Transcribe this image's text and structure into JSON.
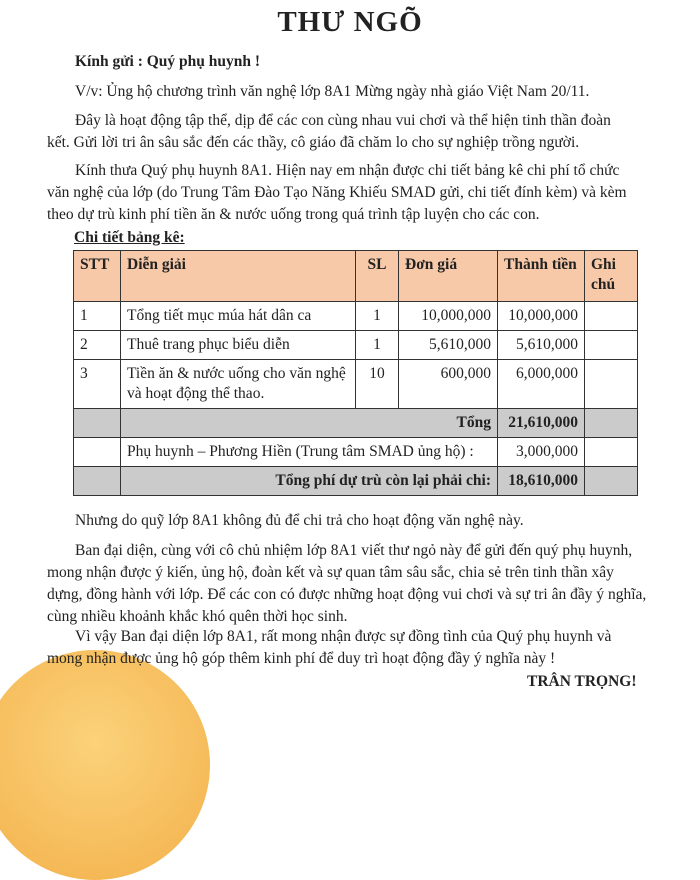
{
  "title": "THƯ NGÕ",
  "greeting": "Kính gửi : Quý phụ huynh !",
  "subject": "V/v: Ủng hộ chương trình văn nghệ lớp 8A1 Mừng ngày nhà giáo Việt Nam 20/11.",
  "para1": [
    "Đây là hoạt động tập thể, dịp để các con cùng nhau vui chơi và thể hiện tinh thần đoàn",
    "kết. Gửi lời tri ân sâu sắc đến các thầy, cô giáo đã chăm lo cho sự nghiệp trồng người."
  ],
  "para2": [
    "Kính thưa Quý phụ huynh 8A1. Hiện nay em nhận được chi tiết bảng kê chi phí tổ chức",
    "văn nghệ của lớp (do Trung Tâm Đào Tạo Năng Khiếu SMAD gửi, chi tiết đính kèm) và kèm",
    "theo dự trù kinh phí tiền ăn & nước uống trong quá trình tập luyện cho các con."
  ],
  "table_title": "Chi tiết bảng kê:",
  "table": {
    "headers": [
      "STT",
      "Diễn giải",
      "SL",
      "Đơn giá",
      "Thành tiền",
      "Ghi chú"
    ],
    "rows": [
      {
        "stt": "1",
        "desc": "Tổng tiết mục múa hát dân ca",
        "qty": "1",
        "price": "10,000,000",
        "total": "10,000,000",
        "note": ""
      },
      {
        "stt": "2",
        "desc": "Thuê trang phục biểu diễn",
        "qty": "1",
        "price": "5,610,000",
        "total": "5,610,000",
        "note": ""
      },
      {
        "stt": "3",
        "desc": "Tiền ăn & nước uống cho văn nghệ và hoạt động thể thao.",
        "qty": "10",
        "price": "600,000",
        "total": "6,000,000",
        "note": ""
      }
    ],
    "sum_label": "Tổng",
    "sum_value": "21,610,000",
    "support_label": "Phụ huynh – Phương Hiền (Trung tâm SMAD ủng hộ) :",
    "support_value": "3,000,000",
    "remaining_label": "Tổng phí dự trù còn lại phải chi:",
    "remaining_value": "18,610,000",
    "header_color": "#f7c9a8",
    "total_row_color": "#cbcbcb"
  },
  "para3": "Nhưng do quỹ lớp 8A1 không đủ để chi trả cho hoạt động văn nghệ này.",
  "para4": [
    "Ban đại diện, cùng với cô chủ nhiệm lớp 8A1 viết thư ngỏ này để gửi đến quý phụ huynh,",
    "mong nhận được ý kiến, ủng hộ, đoàn kết và sự quan tâm sâu sắc, chia sẻ trên tinh thần xây",
    "dựng, đồng hành với lớp. Để các con có được những hoạt động vui chơi và sự tri ân đầy ý nghĩa,",
    "cùng nhiều khoảnh khắc khó quên thời học sinh."
  ],
  "para5": [
    "Vì vậy Ban đại diện lớp 8A1, rất mong nhận được sự đồng tình của Quý phụ huynh và",
    "mong nhận được ủng hộ góp thêm kinh phí để duy trì hoạt động đầy ý nghĩa này !"
  ],
  "closing": "TRÂN TRỌNG!"
}
